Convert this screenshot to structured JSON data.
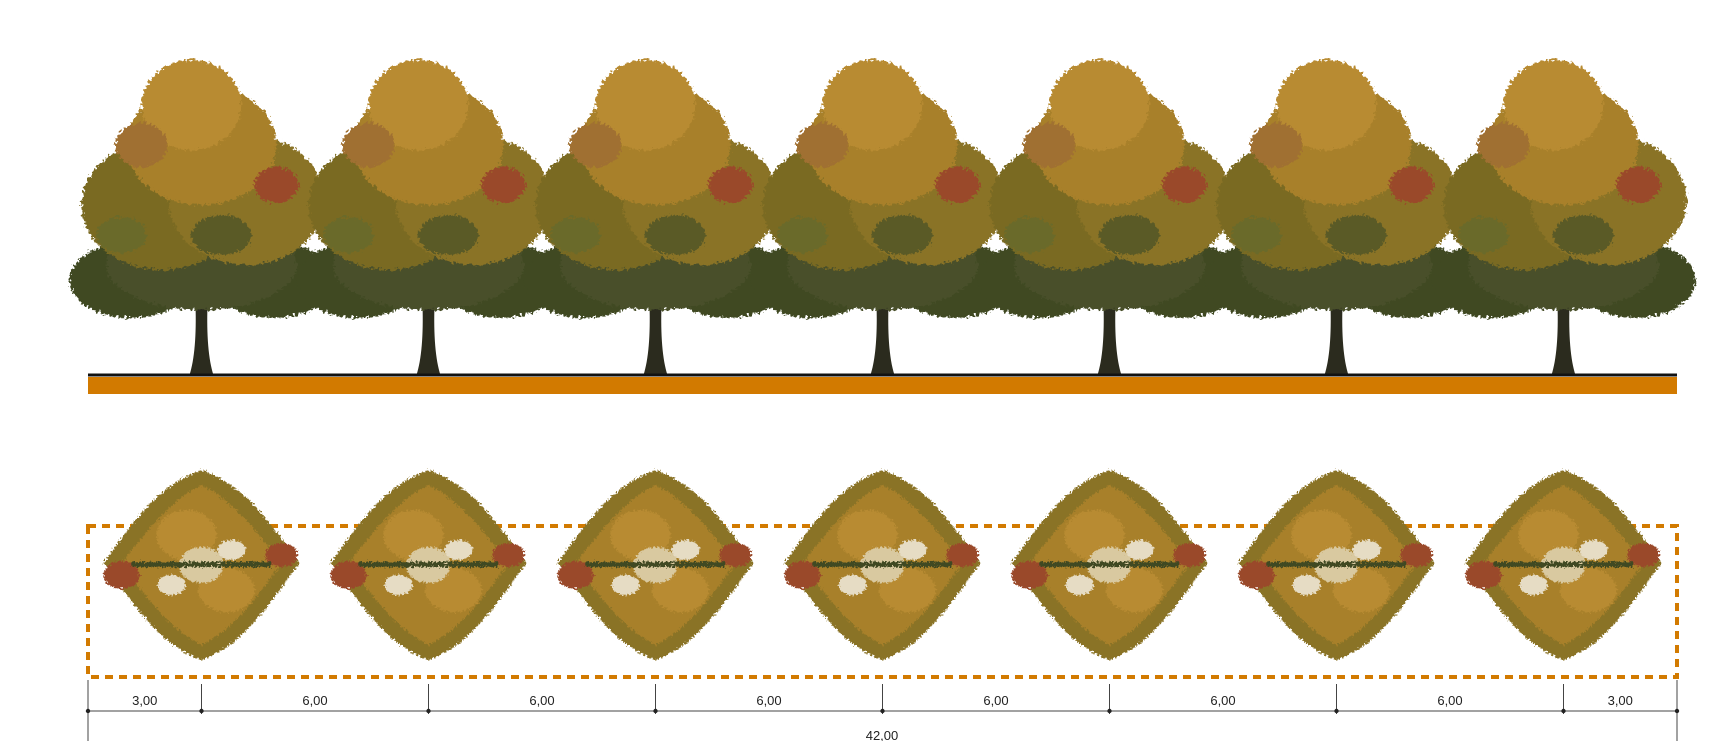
{
  "colors": {
    "ground": "#d27a00",
    "ground_line": "#111111",
    "hedge_outline": "#d27a00",
    "trunk": "#2b2b1e",
    "foliage_dark": "#3f4a22",
    "foliage_mid": "#7a6a22",
    "foliage_gold": "#a8802a",
    "foliage_ochre": "#b88b32",
    "foliage_red": "#9a4a2a",
    "dimension_line": "#444444"
  },
  "elevation": {
    "tree_count": 7,
    "icon": "deciduous-tree-elevation"
  },
  "plan": {
    "tree_count": 7,
    "icon": "tree-canopy-plan"
  },
  "dimensions": {
    "segments": [
      "3,00",
      "6,00",
      "6,00",
      "6,00",
      "6,00",
      "6,00",
      "6,00",
      "3,00"
    ],
    "segment_values": [
      3,
      6,
      6,
      6,
      6,
      6,
      6,
      3
    ],
    "total": "42,00"
  }
}
